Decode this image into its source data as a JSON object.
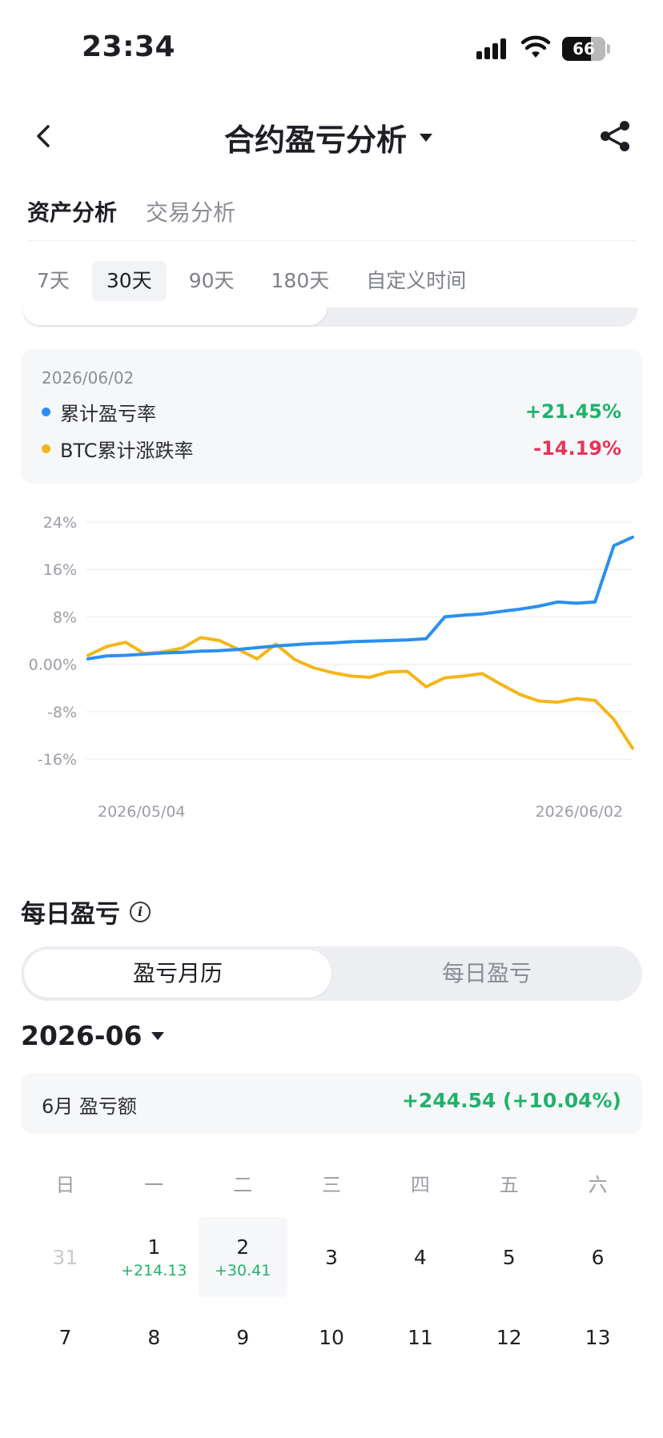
{
  "status": {
    "time": "23:34",
    "battery": "66"
  },
  "nav": {
    "title": "合约盈亏分析"
  },
  "main_tabs": [
    {
      "label": "资产分析",
      "active": true
    },
    {
      "label": "交易分析",
      "active": false
    }
  ],
  "period_tabs": [
    {
      "label": "7天",
      "active": false
    },
    {
      "label": "30天",
      "active": true
    },
    {
      "label": "90天",
      "active": false
    },
    {
      "label": "180天",
      "active": false
    },
    {
      "label": "自定义时间",
      "active": false
    }
  ],
  "summary": {
    "date": "2026/06/02",
    "rows": [
      {
        "label": "累计盈亏率",
        "value": "+21.45%",
        "dot_color": "#2b8ff0",
        "value_color": "#20b26b"
      },
      {
        "label": "BTC累计涨跌率",
        "value": "-14.19%",
        "dot_color": "#f5b519",
        "value_color": "#e8345a"
      }
    ]
  },
  "chart_data": {
    "type": "line",
    "y_ticks": [
      "24%",
      "16%",
      "8%",
      "0.00%",
      "-8%",
      "-16%"
    ],
    "ylim": [
      -16,
      24
    ],
    "x_labels": [
      "2026/05/04",
      "2026/06/02"
    ],
    "series": [
      {
        "name": "累计盈亏率",
        "color": "#2b8ff0",
        "values": [
          0.9,
          1.4,
          1.5,
          1.7,
          1.9,
          2.0,
          2.2,
          2.3,
          2.5,
          2.8,
          3.1,
          3.3,
          3.5,
          3.6,
          3.8,
          3.9,
          4.0,
          4.1,
          4.3,
          8.0,
          8.3,
          8.5,
          8.9,
          9.3,
          9.8,
          10.5,
          10.3,
          10.5,
          20.0,
          21.45
        ]
      },
      {
        "name": "BTC累计涨跌率",
        "color": "#f5b519",
        "values": [
          1.5,
          3.0,
          3.7,
          1.8,
          2.1,
          2.7,
          4.5,
          4.0,
          2.5,
          0.9,
          3.4,
          0.8,
          -0.6,
          -1.4,
          -2.0,
          -2.2,
          -1.3,
          -1.2,
          -3.8,
          -2.3,
          -2.0,
          -1.6,
          -3.4,
          -5.1,
          -6.2,
          -6.4,
          -5.8,
          -6.1,
          -9.3,
          -14.19
        ]
      }
    ]
  },
  "daily": {
    "title": "每日盈亏",
    "segments": [
      {
        "label": "盈亏月历",
        "active": true
      },
      {
        "label": "每日盈亏",
        "active": false
      }
    ],
    "month": "2026-06",
    "month_label": "6月 盈亏额",
    "month_value": "+244.54 (+10.04%)",
    "weekdays": [
      "日",
      "一",
      "二",
      "三",
      "四",
      "五",
      "六"
    ],
    "weeks": [
      [
        {
          "day": "31",
          "muted": true,
          "pnl": ""
        },
        {
          "day": "1",
          "muted": false,
          "pnl": "+214.13"
        },
        {
          "day": "2",
          "muted": false,
          "pnl": "+30.41",
          "selected": true
        },
        {
          "day": "3",
          "muted": false,
          "pnl": ""
        },
        {
          "day": "4",
          "muted": false,
          "pnl": ""
        },
        {
          "day": "5",
          "muted": false,
          "pnl": ""
        },
        {
          "day": "6",
          "muted": false,
          "pnl": ""
        }
      ],
      [
        {
          "day": "7",
          "muted": false,
          "pnl": ""
        },
        {
          "day": "8",
          "muted": false,
          "pnl": ""
        },
        {
          "day": "9",
          "muted": false,
          "pnl": ""
        },
        {
          "day": "10",
          "muted": false,
          "pnl": ""
        },
        {
          "day": "11",
          "muted": false,
          "pnl": ""
        },
        {
          "day": "12",
          "muted": false,
          "pnl": ""
        },
        {
          "day": "13",
          "muted": false,
          "pnl": ""
        }
      ]
    ]
  }
}
